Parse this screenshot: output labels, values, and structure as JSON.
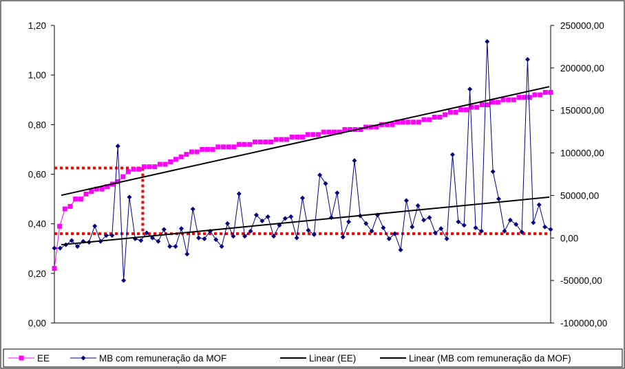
{
  "chart_data": {
    "type": "line",
    "title": "",
    "xlabel": "",
    "ylabel": "",
    "y2label": "",
    "ylim": [
      0,
      1.2
    ],
    "y2lim": [
      -100000,
      250000
    ],
    "y_ticks": [
      "0,00",
      "0,20",
      "0,40",
      "0,60",
      "0,80",
      "1,00",
      "1,20"
    ],
    "y2_ticks": [
      "-100000,00",
      "-50000,00",
      "0,00",
      "50000,00",
      "100000,00",
      "150000,00",
      "200000,00",
      "250000,00"
    ],
    "grid": false,
    "legend_position": "bottom",
    "series": [
      {
        "name": "EE",
        "axis": "left",
        "color": "#ff00ff",
        "marker": "square",
        "values": [
          0.22,
          0.39,
          0.46,
          0.47,
          0.5,
          0.5,
          0.52,
          0.53,
          0.54,
          0.54,
          0.55,
          0.56,
          0.57,
          0.59,
          0.61,
          0.62,
          0.62,
          0.63,
          0.63,
          0.63,
          0.64,
          0.64,
          0.65,
          0.66,
          0.67,
          0.68,
          0.69,
          0.69,
          0.7,
          0.7,
          0.7,
          0.71,
          0.71,
          0.71,
          0.71,
          0.72,
          0.72,
          0.72,
          0.73,
          0.73,
          0.73,
          0.73,
          0.74,
          0.74,
          0.74,
          0.75,
          0.75,
          0.75,
          0.76,
          0.76,
          0.76,
          0.77,
          0.77,
          0.77,
          0.77,
          0.78,
          0.78,
          0.78,
          0.78,
          0.79,
          0.79,
          0.79,
          0.8,
          0.8,
          0.8,
          0.81,
          0.81,
          0.81,
          0.81,
          0.81,
          0.82,
          0.82,
          0.83,
          0.83,
          0.84,
          0.85,
          0.85,
          0.86,
          0.86,
          0.87,
          0.87,
          0.88,
          0.88,
          0.89,
          0.89,
          0.9,
          0.9,
          0.9,
          0.91,
          0.91,
          0.91,
          0.92,
          0.92,
          0.93,
          0.93
        ]
      },
      {
        "name": "MB com remuneração da MOF",
        "axis": "right",
        "color": "#000080",
        "marker": "diamond",
        "values": [
          -12000,
          -12000,
          -8000,
          -3000,
          -10000,
          -4000,
          -5000,
          14000,
          -4000,
          3000,
          3000,
          108000,
          -50000,
          48000,
          -1000,
          -3000,
          6000,
          0,
          -4000,
          10000,
          -10000,
          -10000,
          11000,
          -19000,
          34000,
          0,
          -1000,
          8000,
          -2000,
          -10000,
          17000,
          2000,
          52000,
          2000,
          8000,
          27000,
          20000,
          25000,
          2000,
          15000,
          23000,
          25000,
          0,
          47000,
          9000,
          4000,
          74000,
          64000,
          24000,
          53000,
          1000,
          19000,
          91000,
          26000,
          17000,
          8000,
          27000,
          12000,
          -1000,
          5000,
          -14000,
          44000,
          13000,
          38000,
          21000,
          24000,
          6000,
          11000,
          -1000,
          98000,
          19000,
          15000,
          175000,
          12000,
          8000,
          231000,
          78000,
          46000,
          8000,
          21000,
          16000,
          7000,
          210000,
          18000,
          39000,
          13000,
          10000
        ]
      },
      {
        "name": "Linear (EE)",
        "axis": "left",
        "color": "#000000",
        "type": "trendline",
        "values": [
          0.515,
          0.953
        ]
      },
      {
        "name": "Linear (MB com remuneração da MOF)",
        "axis": "right",
        "color": "#000000",
        "type": "trendline",
        "values": [
          -8000,
          48000
        ]
      }
    ],
    "reference_lines": {
      "color": "#ff0000",
      "style": "dotted",
      "left_horizontal": [
        0.625,
        0.36
      ],
      "vertical_at_fraction": 0.178
    }
  }
}
